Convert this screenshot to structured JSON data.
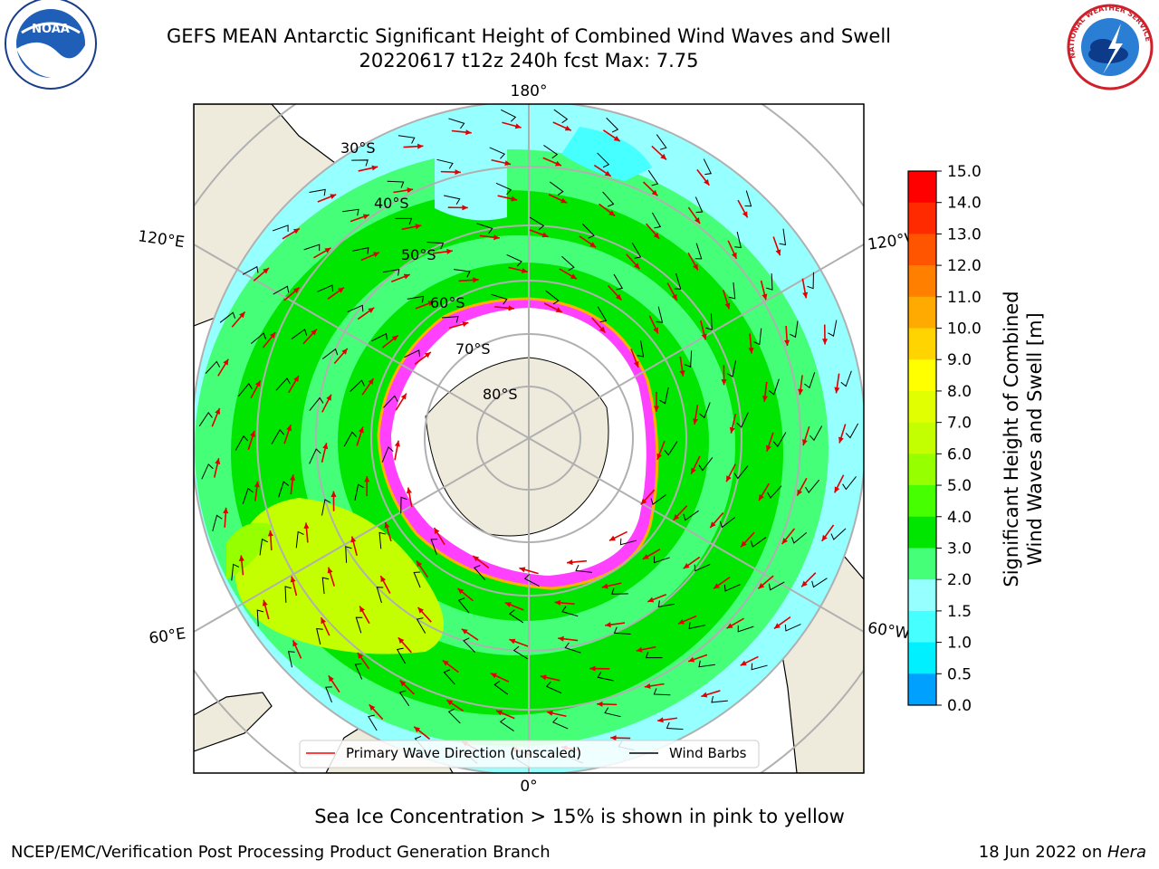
{
  "title": {
    "line1": "GEFS MEAN Antarctic Significant Height of Combined Wind Waves and Swell",
    "line2": "20220617 t12z 240h fcst   Max: 7.75"
  },
  "logos": {
    "left": "NOAA",
    "right": "NATIONAL WEATHER SERVICE"
  },
  "map": {
    "longitude_labels": {
      "top": "180°",
      "bottom": "0°",
      "upper_left": "120°E",
      "upper_right": "120°W",
      "lower_left": "60°E",
      "lower_right": "60°W"
    },
    "latitude_labels": [
      "30°S",
      "40°S",
      "50°S",
      "60°S",
      "70°S",
      "80°S"
    ],
    "legend": {
      "wave": "Primary Wave Direction (unscaled)",
      "barb": "Wind Barbs"
    }
  },
  "colorbar": {
    "label_line1": "Significant Height of Combined",
    "label_line2": "Wind Waves and Swell [m]",
    "ticks": [
      "15.0",
      "14.0",
      "13.0",
      "12.0",
      "11.0",
      "10.0",
      "9.0",
      "8.0",
      "7.0",
      "6.0",
      "5.0",
      "4.0",
      "3.0",
      "2.0",
      "1.5",
      "1.0",
      "0.5",
      "0.0"
    ],
    "colors": [
      "#ff0000",
      "#ff2a00",
      "#ff5500",
      "#ff8000",
      "#ffaa00",
      "#ffd400",
      "#ffff00",
      "#e1ff00",
      "#c3ff00",
      "#96ff00",
      "#46ff00",
      "#00e600",
      "#46ff78",
      "#96ffff",
      "#46ffff",
      "#00f0ff",
      "#00a0ff",
      "#0050ff",
      "#0000ff"
    ]
  },
  "caption": "Sea Ice Concentration > 15% is shown in pink to yellow",
  "footer": {
    "left": "NCEP/EMC/Verification Post Processing Product Generation Branch",
    "right_date": "18 Jun 2022 on ",
    "right_host": "Hera"
  }
}
